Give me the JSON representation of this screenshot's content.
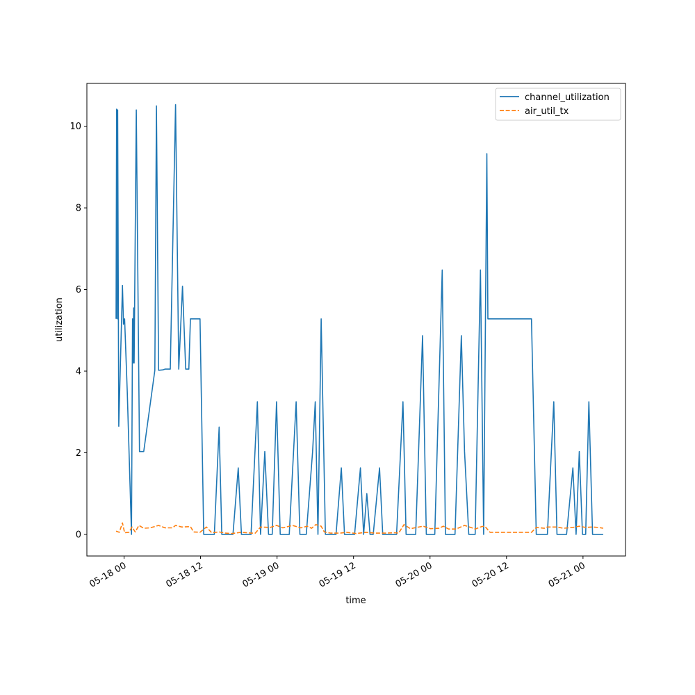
{
  "chart_data": {
    "type": "line",
    "xlabel": "time",
    "ylabel": "utilization",
    "x_ticks": [
      {
        "value": "2023-05-18T00:00",
        "label": "05-18 00"
      },
      {
        "value": "2023-05-18T12:00",
        "label": "05-18 12"
      },
      {
        "value": "2023-05-19T00:00",
        "label": "05-19 00"
      },
      {
        "value": "2023-05-19T12:00",
        "label": "05-19 12"
      },
      {
        "value": "2023-05-20T00:00",
        "label": "05-20 00"
      },
      {
        "value": "2023-05-20T12:00",
        "label": "05-20 12"
      },
      {
        "value": "2023-05-21T00:00",
        "label": "05-21 00"
      }
    ],
    "y_ticks": [
      {
        "value": 0,
        "label": "0"
      },
      {
        "value": 2,
        "label": "2"
      },
      {
        "value": 4,
        "label": "4"
      },
      {
        "value": 6,
        "label": "6"
      },
      {
        "value": 8,
        "label": "8"
      },
      {
        "value": 10,
        "label": "10"
      }
    ],
    "xlim": [
      "2023-05-17T18:10",
      "2023-05-21T06:40"
    ],
    "ylim": [
      -0.53,
      11.05
    ],
    "legend": "top-right",
    "grid": false,
    "series": [
      {
        "name": "channel_utilization",
        "color": "#1f77b4",
        "dash": "solid",
        "points": [
          [
            "2023-05-17T22:45",
            5.28
          ],
          [
            "2023-05-17T22:50",
            10.42
          ],
          [
            "2023-05-17T22:55",
            5.28
          ],
          [
            "2023-05-17T23:00",
            10.4
          ],
          [
            "2023-05-17T23:10",
            2.65
          ],
          [
            "2023-05-17T23:45",
            6.1
          ],
          [
            "2023-05-17T23:55",
            5.15
          ],
          [
            "2023-05-18T00:05",
            5.28
          ],
          [
            "2023-05-18T00:30",
            3.5
          ],
          [
            "2023-05-18T01:10",
            0.0
          ],
          [
            "2023-05-18T01:20",
            5.28
          ],
          [
            "2023-05-18T01:25",
            4.2
          ],
          [
            "2023-05-18T01:30",
            5.55
          ],
          [
            "2023-05-18T01:35",
            4.2
          ],
          [
            "2023-05-18T01:55",
            10.4
          ],
          [
            "2023-05-18T02:25",
            2.03
          ],
          [
            "2023-05-18T03:05",
            2.03
          ],
          [
            "2023-05-18T04:50",
            4.02
          ],
          [
            "2023-05-18T05:05",
            10.5
          ],
          [
            "2023-05-18T05:25",
            4.02
          ],
          [
            "2023-05-18T06:05",
            4.03
          ],
          [
            "2023-05-18T06:25",
            4.05
          ],
          [
            "2023-05-18T07:15",
            4.05
          ],
          [
            "2023-05-18T08:05",
            10.53
          ],
          [
            "2023-05-18T08:35",
            4.05
          ],
          [
            "2023-05-18T09:10",
            6.08
          ],
          [
            "2023-05-18T09:40",
            4.05
          ],
          [
            "2023-05-18T10:10",
            4.05
          ],
          [
            "2023-05-18T10:25",
            5.28
          ],
          [
            "2023-05-18T11:55",
            5.28
          ],
          [
            "2023-05-18T12:30",
            0.0
          ],
          [
            "2023-05-18T14:10",
            0.0
          ],
          [
            "2023-05-18T14:55",
            2.63
          ],
          [
            "2023-05-18T15:20",
            0.0
          ],
          [
            "2023-05-18T17:05",
            0.0
          ],
          [
            "2023-05-18T17:55",
            1.63
          ],
          [
            "2023-05-18T18:25",
            0.0
          ],
          [
            "2023-05-18T19:55",
            0.0
          ],
          [
            "2023-05-18T20:55",
            3.25
          ],
          [
            "2023-05-18T21:25",
            0.0
          ],
          [
            "2023-05-18T22:05",
            2.03
          ],
          [
            "2023-05-18T22:40",
            0.0
          ],
          [
            "2023-05-18T23:15",
            0.0
          ],
          [
            "2023-05-18T23:55",
            3.25
          ],
          [
            "2023-05-19T00:30",
            0.0
          ],
          [
            "2023-05-19T01:55",
            0.0
          ],
          [
            "2023-05-19T03:00",
            3.25
          ],
          [
            "2023-05-19T03:35",
            0.0
          ],
          [
            "2023-05-19T04:35",
            0.0
          ],
          [
            "2023-05-19T05:35",
            2.03
          ],
          [
            "2023-05-19T06:00",
            3.25
          ],
          [
            "2023-05-19T06:25",
            0.0
          ],
          [
            "2023-05-19T06:55",
            5.28
          ],
          [
            "2023-05-19T07:35",
            0.0
          ],
          [
            "2023-05-19T09:15",
            0.0
          ],
          [
            "2023-05-19T10:05",
            1.63
          ],
          [
            "2023-05-19T10:35",
            0.0
          ],
          [
            "2023-05-19T12:10",
            0.0
          ],
          [
            "2023-05-19T13:05",
            1.63
          ],
          [
            "2023-05-19T13:35",
            0.0
          ],
          [
            "2023-05-19T14:05",
            1.0
          ],
          [
            "2023-05-19T14:35",
            0.0
          ],
          [
            "2023-05-19T15:05",
            0.0
          ],
          [
            "2023-05-19T16:05",
            1.63
          ],
          [
            "2023-05-19T16:35",
            0.0
          ],
          [
            "2023-05-19T18:45",
            0.0
          ],
          [
            "2023-05-19T19:45",
            3.25
          ],
          [
            "2023-05-19T20:15",
            0.0
          ],
          [
            "2023-05-19T21:45",
            0.0
          ],
          [
            "2023-05-19T22:05",
            1.5
          ],
          [
            "2023-05-19T22:50",
            4.87
          ],
          [
            "2023-05-19T23:25",
            0.0
          ],
          [
            "2023-05-20T00:45",
            0.0
          ],
          [
            "2023-05-20T01:55",
            6.48
          ],
          [
            "2023-05-20T02:25",
            0.0
          ],
          [
            "2023-05-20T03:55",
            0.0
          ],
          [
            "2023-05-20T04:55",
            4.87
          ],
          [
            "2023-05-20T05:25",
            2.03
          ],
          [
            "2023-05-20T06:05",
            0.0
          ],
          [
            "2023-05-20T07:05",
            0.0
          ],
          [
            "2023-05-20T07:55",
            6.48
          ],
          [
            "2023-05-20T08:25",
            0.0
          ],
          [
            "2023-05-20T08:55",
            9.33
          ],
          [
            "2023-05-20T09:05",
            5.28
          ],
          [
            "2023-05-20T15:55",
            5.28
          ],
          [
            "2023-05-20T16:40",
            0.0
          ],
          [
            "2023-05-20T18:25",
            0.0
          ],
          [
            "2023-05-20T19:25",
            3.25
          ],
          [
            "2023-05-20T19:55",
            0.0
          ],
          [
            "2023-05-20T21:25",
            0.0
          ],
          [
            "2023-05-20T22:25",
            1.63
          ],
          [
            "2023-05-20T22:55",
            0.0
          ],
          [
            "2023-05-20T23:25",
            2.03
          ],
          [
            "2023-05-20T23:55",
            0.0
          ],
          [
            "2023-05-21T00:25",
            0.0
          ],
          [
            "2023-05-21T00:55",
            3.25
          ],
          [
            "2023-05-21T01:30",
            0.0
          ],
          [
            "2023-05-21T03:10",
            0.0
          ]
        ]
      },
      {
        "name": "air_util_tx",
        "color": "#ff7f0e",
        "dash": "dashed",
        "points": [
          [
            "2023-05-17T22:45",
            0.08
          ],
          [
            "2023-05-17T23:15",
            0.05
          ],
          [
            "2023-05-17T23:45",
            0.28
          ],
          [
            "2023-05-18T00:05",
            0.04
          ],
          [
            "2023-05-18T00:45",
            0.05
          ],
          [
            "2023-05-18T01:15",
            0.18
          ],
          [
            "2023-05-18T01:45",
            0.06
          ],
          [
            "2023-05-18T02:20",
            0.22
          ],
          [
            "2023-05-18T03:05",
            0.15
          ],
          [
            "2023-05-18T04:05",
            0.16
          ],
          [
            "2023-05-18T05:25",
            0.22
          ],
          [
            "2023-05-18T06:25",
            0.16
          ],
          [
            "2023-05-18T07:35",
            0.16
          ],
          [
            "2023-05-18T08:05",
            0.22
          ],
          [
            "2023-05-18T09:05",
            0.18
          ],
          [
            "2023-05-18T10:25",
            0.19
          ],
          [
            "2023-05-18T10:55",
            0.06
          ],
          [
            "2023-05-18T11:55",
            0.05
          ],
          [
            "2023-05-18T12:55",
            0.18
          ],
          [
            "2023-05-18T13:45",
            0.04
          ],
          [
            "2023-05-18T14:55",
            0.06
          ],
          [
            "2023-05-18T15:55",
            0.03
          ],
          [
            "2023-05-18T16:55",
            0.02
          ],
          [
            "2023-05-18T18:25",
            0.05
          ],
          [
            "2023-05-18T19:55",
            0.03
          ],
          [
            "2023-05-18T20:35",
            0.03
          ],
          [
            "2023-05-18T21:25",
            0.18
          ],
          [
            "2023-05-18T22:55",
            0.17
          ],
          [
            "2023-05-18T23:55",
            0.22
          ],
          [
            "2023-05-19T00:55",
            0.16
          ],
          [
            "2023-05-19T02:25",
            0.22
          ],
          [
            "2023-05-19T03:45",
            0.16
          ],
          [
            "2023-05-19T04:45",
            0.2
          ],
          [
            "2023-05-19T05:25",
            0.15
          ],
          [
            "2023-05-19T06:05",
            0.24
          ],
          [
            "2023-05-19T06:55",
            0.2
          ],
          [
            "2023-05-19T07:25",
            0.06
          ],
          [
            "2023-05-19T08:25",
            0.03
          ],
          [
            "2023-05-19T09:55",
            0.03
          ],
          [
            "2023-05-19T10:55",
            0.05
          ],
          [
            "2023-05-19T12:25",
            0.02
          ],
          [
            "2023-05-19T13:55",
            0.05
          ],
          [
            "2023-05-19T15:25",
            0.03
          ],
          [
            "2023-05-19T16:55",
            0.03
          ],
          [
            "2023-05-19T18:25",
            0.04
          ],
          [
            "2023-05-19T19:05",
            0.03
          ],
          [
            "2023-05-19T19:55",
            0.24
          ],
          [
            "2023-05-19T20:55",
            0.14
          ],
          [
            "2023-05-19T22:55",
            0.2
          ],
          [
            "2023-05-20T00:05",
            0.14
          ],
          [
            "2023-05-20T01:25",
            0.15
          ],
          [
            "2023-05-20T02:05",
            0.2
          ],
          [
            "2023-05-20T02:55",
            0.13
          ],
          [
            "2023-05-20T04:05",
            0.13
          ],
          [
            "2023-05-20T05:25",
            0.22
          ],
          [
            "2023-05-20T06:35",
            0.16
          ],
          [
            "2023-05-20T07:05",
            0.13
          ],
          [
            "2023-05-20T08:05",
            0.19
          ],
          [
            "2023-05-20T08:35",
            0.2
          ],
          [
            "2023-05-20T09:25",
            0.05
          ],
          [
            "2023-05-20T12:00",
            0.05
          ],
          [
            "2023-05-20T15:55",
            0.05
          ],
          [
            "2023-05-20T16:40",
            0.17
          ],
          [
            "2023-05-20T17:55",
            0.15
          ],
          [
            "2023-05-20T18:25",
            0.18
          ],
          [
            "2023-05-20T19:55",
            0.18
          ],
          [
            "2023-05-20T20:55",
            0.15
          ],
          [
            "2023-05-20T22:25",
            0.17
          ],
          [
            "2023-05-20T23:25",
            0.2
          ],
          [
            "2023-05-21T00:25",
            0.17
          ],
          [
            "2023-05-21T01:25",
            0.18
          ],
          [
            "2023-05-21T02:25",
            0.17
          ],
          [
            "2023-05-21T03:10",
            0.15
          ]
        ]
      }
    ]
  }
}
